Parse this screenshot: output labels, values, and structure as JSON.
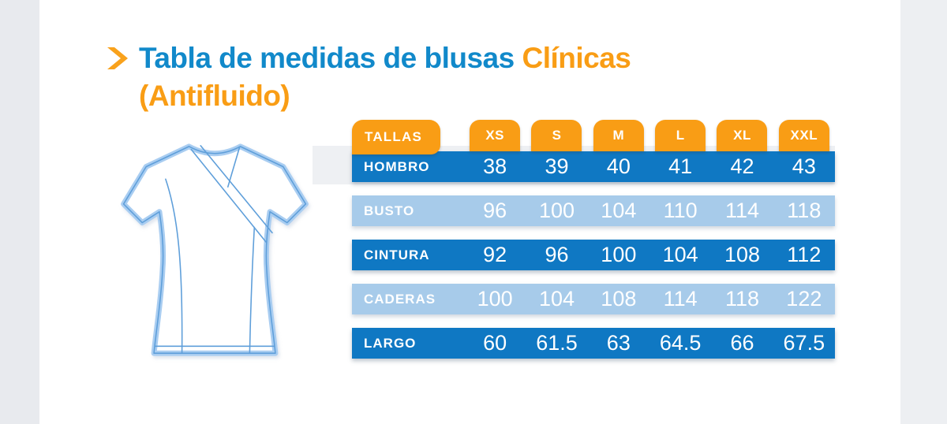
{
  "title": {
    "line1_blue": "Tabla de medidas de blusas",
    "line1_orange": "Clínicas",
    "line2_orange": "(Antifluido)"
  },
  "icons": {
    "title_arrow": "chevron-right",
    "illustration": "clinical-blouse-outline"
  },
  "colors": {
    "title_blue": "#1189ca",
    "accent_orange": "#f99d15",
    "row_dark_blue": "#0f78c3",
    "row_light_blue": "#a7cbea",
    "value_text": "#ffffff"
  },
  "table": {
    "header_label": "TALLAS",
    "sizes": [
      "XS",
      "S",
      "M",
      "L",
      "XL",
      "XXL"
    ],
    "rows": [
      {
        "label": "HOMBRO",
        "tone": "dark",
        "values": [
          "38",
          "39",
          "40",
          "41",
          "42",
          "43"
        ]
      },
      {
        "label": "BUSTO",
        "tone": "light",
        "values": [
          "96",
          "100",
          "104",
          "110",
          "114",
          "118"
        ]
      },
      {
        "label": "CINTURA",
        "tone": "dark",
        "values": [
          "92",
          "96",
          "100",
          "104",
          "108",
          "112"
        ]
      },
      {
        "label": "CADERAS",
        "tone": "light",
        "values": [
          "100",
          "104",
          "108",
          "114",
          "118",
          "122"
        ]
      },
      {
        "label": "LARGO",
        "tone": "dark",
        "values": [
          "60",
          "61.5",
          "63",
          "64.5",
          "66",
          "67.5"
        ]
      }
    ]
  },
  "chart_data": {
    "type": "table",
    "title": "Tabla de medidas de blusas Clínicas (Antifluido)",
    "columns": [
      "TALLAS",
      "XS",
      "S",
      "M",
      "L",
      "XL",
      "XXL"
    ],
    "rows": [
      [
        "HOMBRO",
        38,
        39,
        40,
        41,
        42,
        43
      ],
      [
        "BUSTO",
        96,
        100,
        104,
        110,
        114,
        118
      ],
      [
        "CINTURA",
        92,
        96,
        100,
        104,
        108,
        112
      ],
      [
        "CADERAS",
        100,
        104,
        108,
        114,
        118,
        122
      ],
      [
        "LARGO",
        60,
        61.5,
        63,
        64.5,
        66,
        67.5
      ]
    ]
  }
}
